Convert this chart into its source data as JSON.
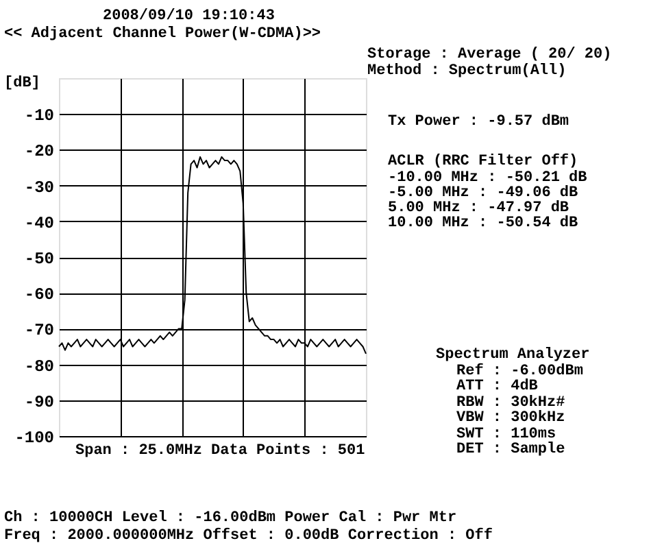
{
  "chart_data": {
    "type": "line",
    "title": "<< Adjacent Channel Power(W-CDMA)>>",
    "ylabel": "[dB]",
    "categories": [
      null,
      null,
      null,
      null,
      null,
      null,
      null,
      null,
      null,
      null,
      null,
      null,
      null,
      null,
      null,
      null,
      null,
      null,
      null,
      null,
      null,
      null,
      null,
      null,
      null,
      null,
      null,
      null,
      null,
      null,
      null,
      null,
      null,
      null,
      null,
      null,
      null,
      null,
      null,
      null,
      null,
      null,
      null,
      null,
      null,
      null,
      null,
      null,
      null,
      null,
      null,
      null,
      null,
      null,
      null,
      null,
      null,
      null,
      null,
      null,
      null,
      null,
      null,
      null,
      null,
      null,
      null,
      null,
      null,
      null,
      null,
      null,
      null,
      null,
      null,
      null,
      null,
      null,
      null,
      null,
      null,
      null,
      null,
      null,
      null,
      null,
      null,
      null,
      null,
      null,
      null,
      null,
      null,
      null,
      null,
      null,
      null,
      null,
      null,
      null,
      null
    ],
    "series": [
      {
        "color": "#000000",
        "values": [
          -75,
          -74,
          -76,
          -74,
          -75,
          -74,
          -73,
          -75,
          -74,
          -73,
          -74,
          -75,
          -73,
          -74,
          -75,
          -74,
          -73,
          -74,
          -75,
          -74,
          -73,
          -75,
          -74,
          -73,
          -75,
          -74,
          -73,
          -74,
          -75,
          -74,
          -73,
          -74,
          -73,
          -72,
          -73,
          -72,
          -71,
          -72,
          -71,
          -70,
          -70,
          -62,
          -32,
          -24,
          -23,
          -25,
          -22,
          -24,
          -23,
          -25,
          -24,
          -23,
          -24,
          -22,
          -23,
          -23,
          -24,
          -23,
          -24,
          -26,
          -35,
          -60,
          -68,
          -67,
          -69,
          -70,
          -71,
          -72,
          -72,
          -73,
          -73,
          -74,
          -73,
          -75,
          -74,
          -73,
          -74,
          -75,
          -73,
          -74,
          -74,
          -75,
          -73,
          -74,
          -75,
          -74,
          -73,
          -74,
          -75,
          -74,
          -73,
          -75,
          -74,
          -73,
          -74,
          -75,
          -74,
          -73,
          -74,
          -75,
          -77
        ]
      }
    ],
    "ylim": [
      -100,
      0
    ],
    "yticks": [
      -100,
      -90,
      -80,
      -70,
      -60,
      -50,
      -40,
      -30,
      -20,
      -10
    ],
    "grid": true,
    "tick_labels": "y",
    "marker": "none",
    "line_style": "solid",
    "annotations": [
      "2008/09/10  19:10:43",
      "Storage   : Average (  20/  20)",
      "Method    : Spectrum(All)",
      "Tx Power   :   -9.57 dBm",
      "ACLR (RRC Filter Off)",
      "-10.00 MHz :  -50.21 dB",
      " -5.00 MHz :  -49.06 dB",
      "  5.00 MHz :  -47.97 dB",
      " 10.00 MHz :  -50.54 dB",
      "Spectrum Analyzer",
      "Ref :    -6.00dBm",
      "ATT :        4dB",
      "RBW :      30kHz#",
      "VBW :     300kHz",
      "SWT :      110ms",
      "DET : Sample",
      "Span : 25.0MHz  Data Points : 501",
      "Ch   :        10000CH  Level  : -16.00dBm  Power Cal  : Pwr Mtr",
      "Freq :  2000.000000MHz  Offset :   0.00dB  Correction : Off"
    ]
  }
}
